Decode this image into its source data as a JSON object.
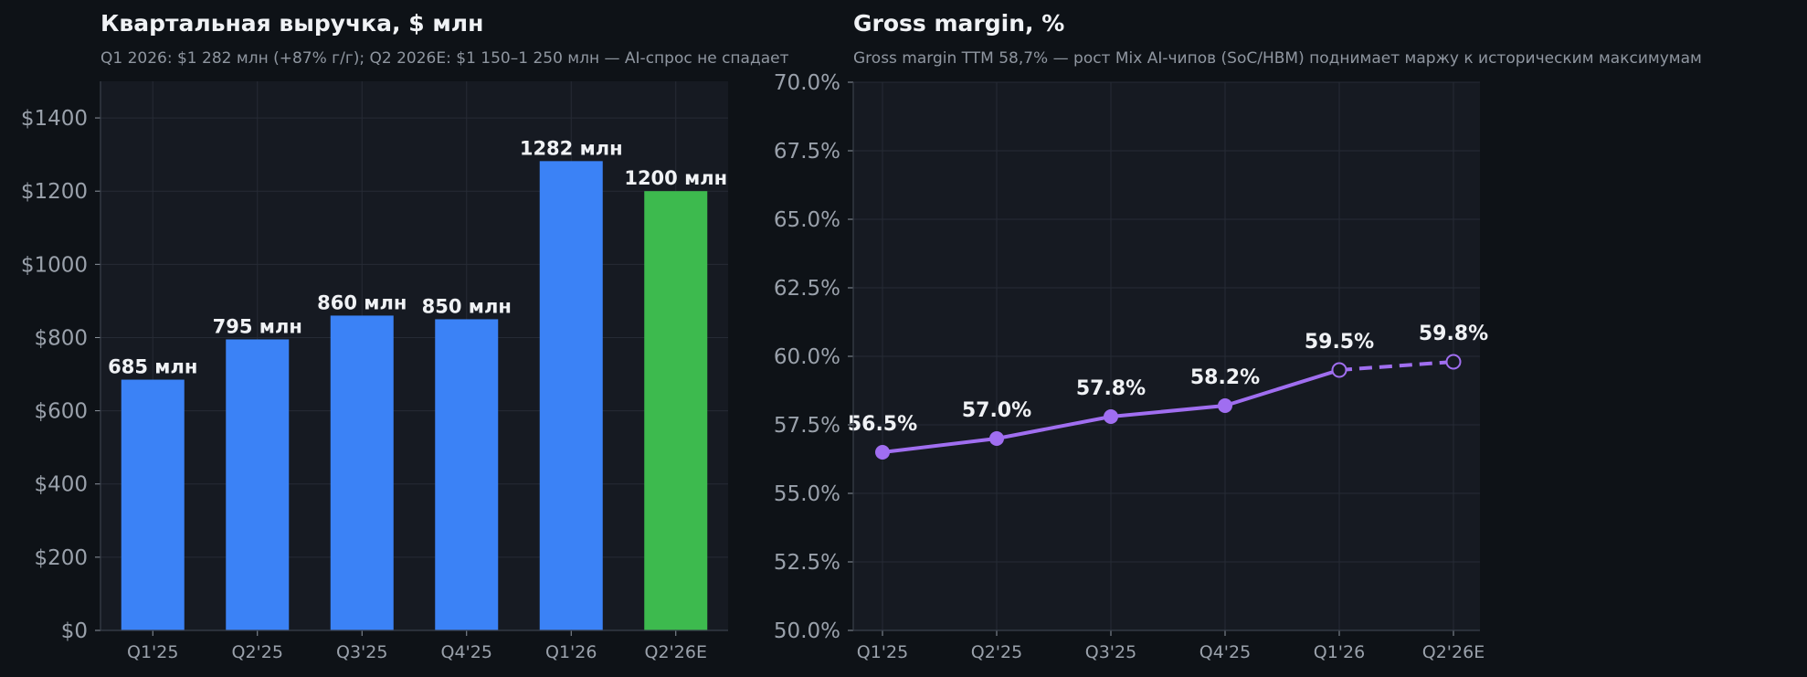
{
  "charts": {
    "revenue": {
      "title": "Квартальная выручка, $ млн",
      "subtitle": "Q1 2026: $1 282 млн (+87% г/г); Q2 2026E: $1 150–1 250 млн — AI-спрос не спадает"
    },
    "margin": {
      "title": "Gross margin, %",
      "subtitle": "Gross margin TTM 58,7% — рост Mix AI-чипов (SoC/HBM) поднимает маржу к историческим максимумам"
    }
  },
  "chart_data": [
    {
      "type": "bar",
      "title": "Квартальная выручка, $ млн",
      "subtitle": "Q1 2026: $1 282 млн (+87% г/г); Q2 2026E: $1 150–1 250 млн — AI-спрос не спадает",
      "categories": [
        "Q1'25",
        "Q2'25",
        "Q3'25",
        "Q4'25",
        "Q1'26",
        "Q2'26E"
      ],
      "values": [
        685,
        795,
        860,
        850,
        1282,
        1200
      ],
      "data_labels": [
        "685 млн",
        "795 млн",
        "860 млн",
        "850 млн",
        "1282 млн",
        "1200 млн"
      ],
      "colors": [
        "#3b82f6",
        "#3b82f6",
        "#3b82f6",
        "#3b82f6",
        "#3b82f6",
        "#3dba4e"
      ],
      "ylim": [
        0,
        1500
      ],
      "yticks": [
        0,
        200,
        400,
        600,
        800,
        1000,
        1200,
        1400
      ],
      "ytick_labels": [
        "$0",
        "$200",
        "$400",
        "$600",
        "$800",
        "$1000",
        "$1200",
        "$1400"
      ],
      "grid": true
    },
    {
      "type": "line",
      "title": "Gross margin, %",
      "subtitle": "Gross margin TTM 58,7% — рост Mix AI-чипов (SoC/HBM) поднимает маржу к историческим максимумам",
      "categories": [
        "Q1'25",
        "Q2'25",
        "Q3'25",
        "Q4'25",
        "Q1'26",
        "Q2'26E"
      ],
      "values": [
        56.5,
        57.0,
        57.8,
        58.2,
        59.5,
        59.8
      ],
      "data_labels": [
        "56.5%",
        "57.0%",
        "57.8%",
        "58.2%",
        "59.5%",
        "59.8%"
      ],
      "color": "#a06ef0",
      "forecast_from_index": 4,
      "ylim": [
        50,
        70
      ],
      "yticks": [
        50,
        52.5,
        55,
        57.5,
        60,
        62.5,
        65,
        67.5,
        70
      ],
      "ytick_labels": [
        "50.0%",
        "52.5%",
        "55.0%",
        "57.5%",
        "60.0%",
        "62.5%",
        "65.0%",
        "67.5%",
        "70.0%"
      ],
      "grid": true
    }
  ]
}
